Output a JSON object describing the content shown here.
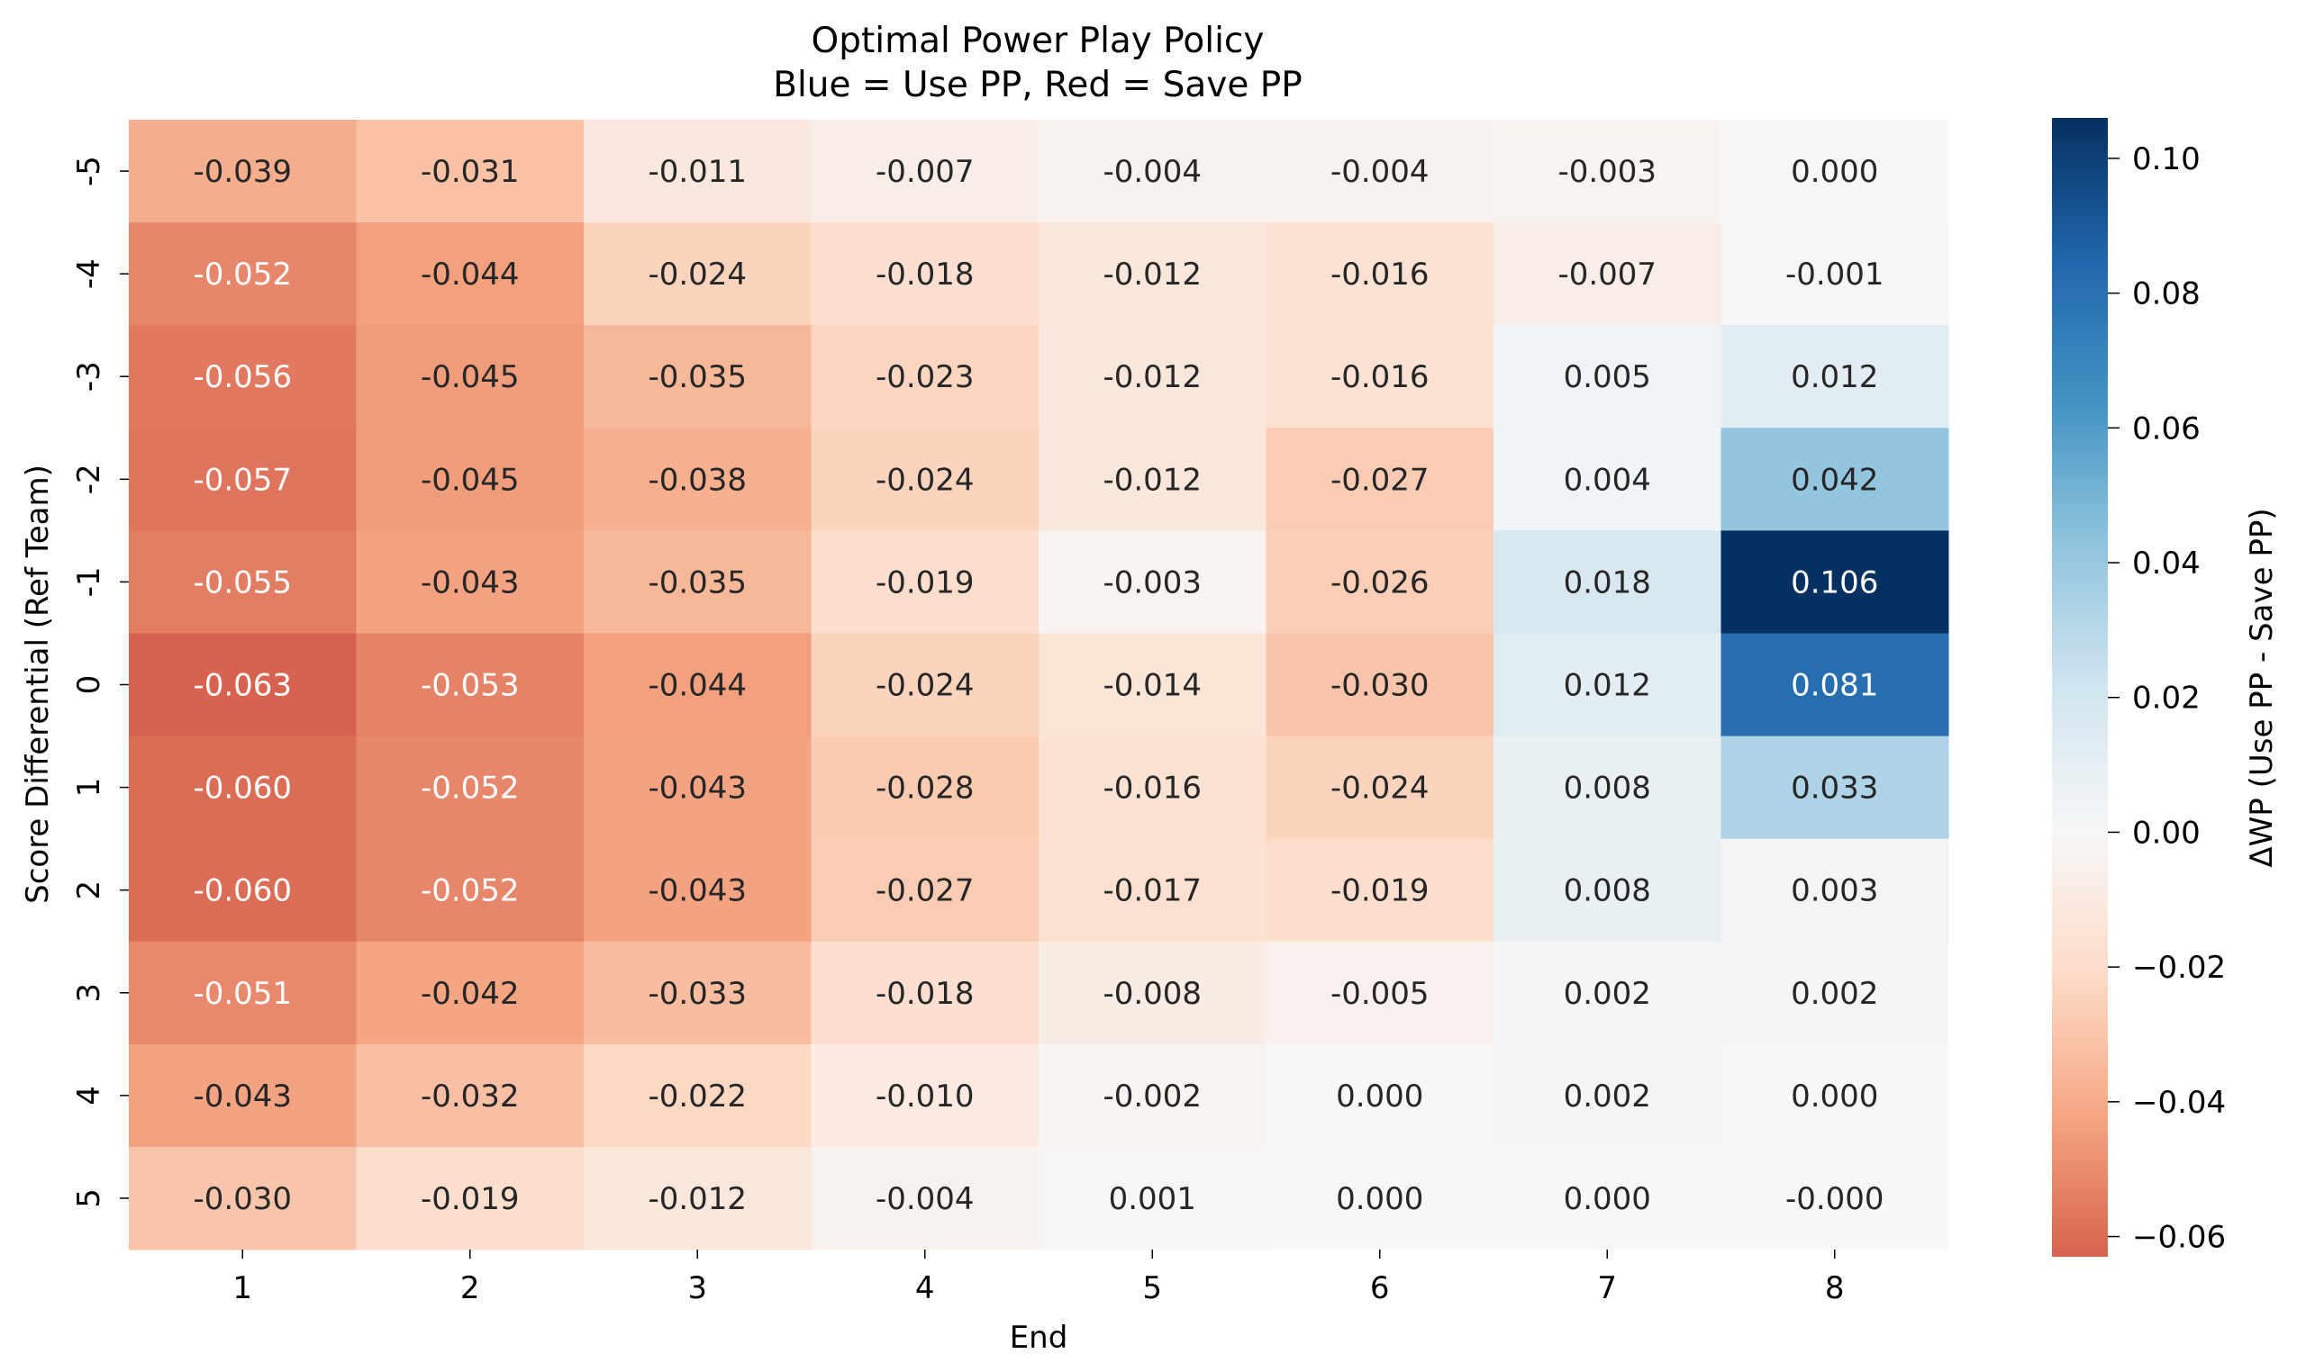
{
  "chart_data": {
    "type": "heatmap",
    "title": "Optimal Power Play Policy",
    "subtitle": "Blue = Use PP, Red = Save PP",
    "xlabel": "End",
    "ylabel": "Score Differential (Ref Team)",
    "x_categories": [
      "1",
      "2",
      "3",
      "4",
      "5",
      "6",
      "7",
      "8"
    ],
    "y_categories": [
      "-5",
      "-4",
      "-3",
      "-2",
      "-1",
      "0",
      "1",
      "2",
      "3",
      "4",
      "5"
    ],
    "values": [
      [
        -0.039,
        -0.031,
        -0.011,
        -0.007,
        -0.004,
        -0.004,
        -0.003,
        0.0
      ],
      [
        -0.052,
        -0.044,
        -0.024,
        -0.018,
        -0.012,
        -0.016,
        -0.007,
        -0.001
      ],
      [
        -0.056,
        -0.045,
        -0.035,
        -0.023,
        -0.012,
        -0.016,
        0.005,
        0.012
      ],
      [
        -0.057,
        -0.045,
        -0.038,
        -0.024,
        -0.012,
        -0.027,
        0.004,
        0.042
      ],
      [
        -0.055,
        -0.043,
        -0.035,
        -0.019,
        -0.003,
        -0.026,
        0.018,
        0.106
      ],
      [
        -0.063,
        -0.053,
        -0.044,
        -0.024,
        -0.014,
        -0.03,
        0.012,
        0.081
      ],
      [
        -0.06,
        -0.052,
        -0.043,
        -0.028,
        -0.016,
        -0.024,
        0.008,
        0.033
      ],
      [
        -0.06,
        -0.052,
        -0.043,
        -0.027,
        -0.017,
        -0.019,
        0.008,
        0.003
      ],
      [
        -0.051,
        -0.042,
        -0.033,
        -0.018,
        -0.008,
        -0.005,
        0.002,
        0.002
      ],
      [
        -0.043,
        -0.032,
        -0.022,
        -0.01,
        -0.002,
        0.0,
        0.002,
        0.0
      ],
      [
        -0.03,
        -0.019,
        -0.012,
        -0.004,
        0.001,
        0.0,
        0.0,
        -0.0001
      ]
    ],
    "annotations": [
      [
        "-0.039",
        "-0.031",
        "-0.011",
        "-0.007",
        "-0.004",
        "-0.004",
        "-0.003",
        "0.000"
      ],
      [
        "-0.052",
        "-0.044",
        "-0.024",
        "-0.018",
        "-0.012",
        "-0.016",
        "-0.007",
        "-0.001"
      ],
      [
        "-0.056",
        "-0.045",
        "-0.035",
        "-0.023",
        "-0.012",
        "-0.016",
        "0.005",
        "0.012"
      ],
      [
        "-0.057",
        "-0.045",
        "-0.038",
        "-0.024",
        "-0.012",
        "-0.027",
        "0.004",
        "0.042"
      ],
      [
        "-0.055",
        "-0.043",
        "-0.035",
        "-0.019",
        "-0.003",
        "-0.026",
        "0.018",
        "0.106"
      ],
      [
        "-0.063",
        "-0.053",
        "-0.044",
        "-0.024",
        "-0.014",
        "-0.030",
        "0.012",
        "0.081"
      ],
      [
        "-0.060",
        "-0.052",
        "-0.043",
        "-0.028",
        "-0.016",
        "-0.024",
        "0.008",
        "0.033"
      ],
      [
        "-0.060",
        "-0.052",
        "-0.043",
        "-0.027",
        "-0.017",
        "-0.019",
        "0.008",
        "0.003"
      ],
      [
        "-0.051",
        "-0.042",
        "-0.033",
        "-0.018",
        "-0.008",
        "-0.005",
        "0.002",
        "0.002"
      ],
      [
        "-0.043",
        "-0.032",
        "-0.022",
        "-0.010",
        "-0.002",
        "0.000",
        "0.002",
        "0.000"
      ],
      [
        "-0.030",
        "-0.019",
        "-0.012",
        "-0.004",
        "0.001",
        "0.000",
        "0.000",
        "-0.000"
      ]
    ],
    "colormap": "RdBu",
    "center": 0,
    "colorbar": {
      "label": "ΔWP (Use PP - Save PP)",
      "range": [
        -0.063,
        0.106
      ],
      "ticks": [
        0.1,
        0.08,
        0.06,
        0.04,
        0.02,
        0.0,
        -0.02,
        -0.04,
        -0.06
      ],
      "tick_labels": [
        "0.10",
        "0.08",
        "0.06",
        "0.04",
        "0.02",
        "0.00",
        "−0.02",
        "−0.04",
        "−0.06"
      ]
    },
    "colors": {
      "rdbu_stops": [
        "#67001f",
        "#b2182b",
        "#d6604d",
        "#f4a582",
        "#fddbc7",
        "#f7f7f7",
        "#d1e5f0",
        "#92c5de",
        "#4393c3",
        "#2166ac",
        "#053061"
      ]
    }
  }
}
